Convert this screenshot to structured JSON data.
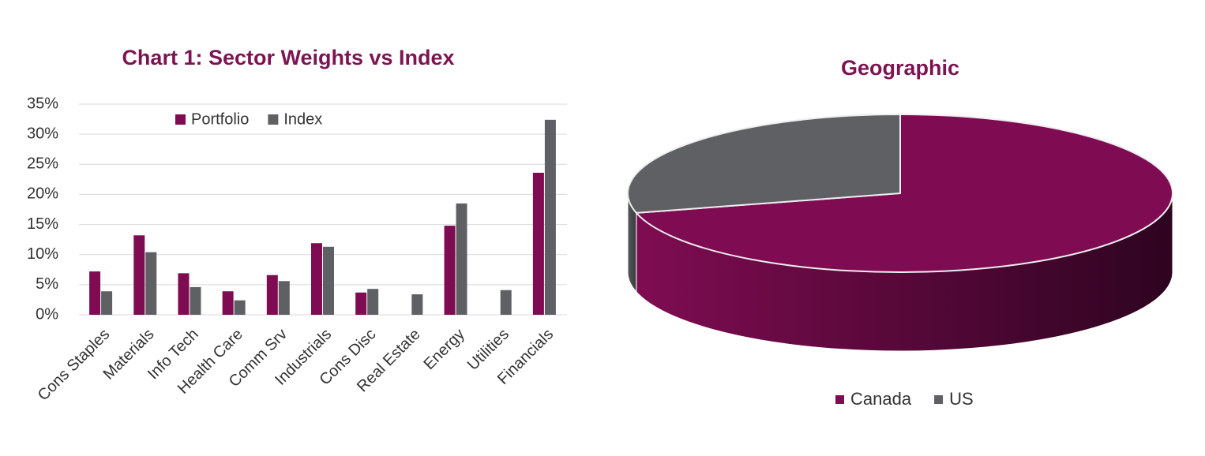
{
  "chart_data": [
    {
      "type": "bar",
      "title": "Chart 1: Sector Weights vs Index",
      "categories": [
        "Cons Staples",
        "Materials",
        "Info Tech",
        "Health Care",
        "Comm Srv",
        "Industrials",
        "Cons Disc",
        "Real Estate",
        "Energy",
        "Utilities",
        "Financials"
      ],
      "series": [
        {
          "name": "Portfolio",
          "color": "#7f0c52",
          "values": [
            7.2,
            13.2,
            6.9,
            3.9,
            6.6,
            11.9,
            3.7,
            0,
            14.8,
            0,
            23.6
          ]
        },
        {
          "name": "Index",
          "color": "#5f6064",
          "values": [
            3.9,
            10.4,
            4.6,
            2.4,
            5.6,
            11.3,
            4.3,
            3.4,
            18.5,
            4.1,
            32.4
          ]
        }
      ],
      "ylim": [
        0,
        35
      ],
      "yticks": [
        {
          "value": 0,
          "label": "0%"
        },
        {
          "value": 5,
          "label": "5%"
        },
        {
          "value": 10,
          "label": "10%"
        },
        {
          "value": 15,
          "label": "15%"
        },
        {
          "value": 20,
          "label": "20%"
        },
        {
          "value": 25,
          "label": "25%"
        },
        {
          "value": 30,
          "label": "30%"
        },
        {
          "value": 35,
          "label": "35%"
        }
      ],
      "grid": true,
      "legend": "top"
    },
    {
      "type": "pie",
      "title": "Geographic",
      "categories": [
        "Canada",
        "US"
      ],
      "values": [
        71,
        29
      ],
      "colors": [
        "#7f0c52",
        "#5f6064"
      ],
      "legend": "bottom"
    }
  ]
}
